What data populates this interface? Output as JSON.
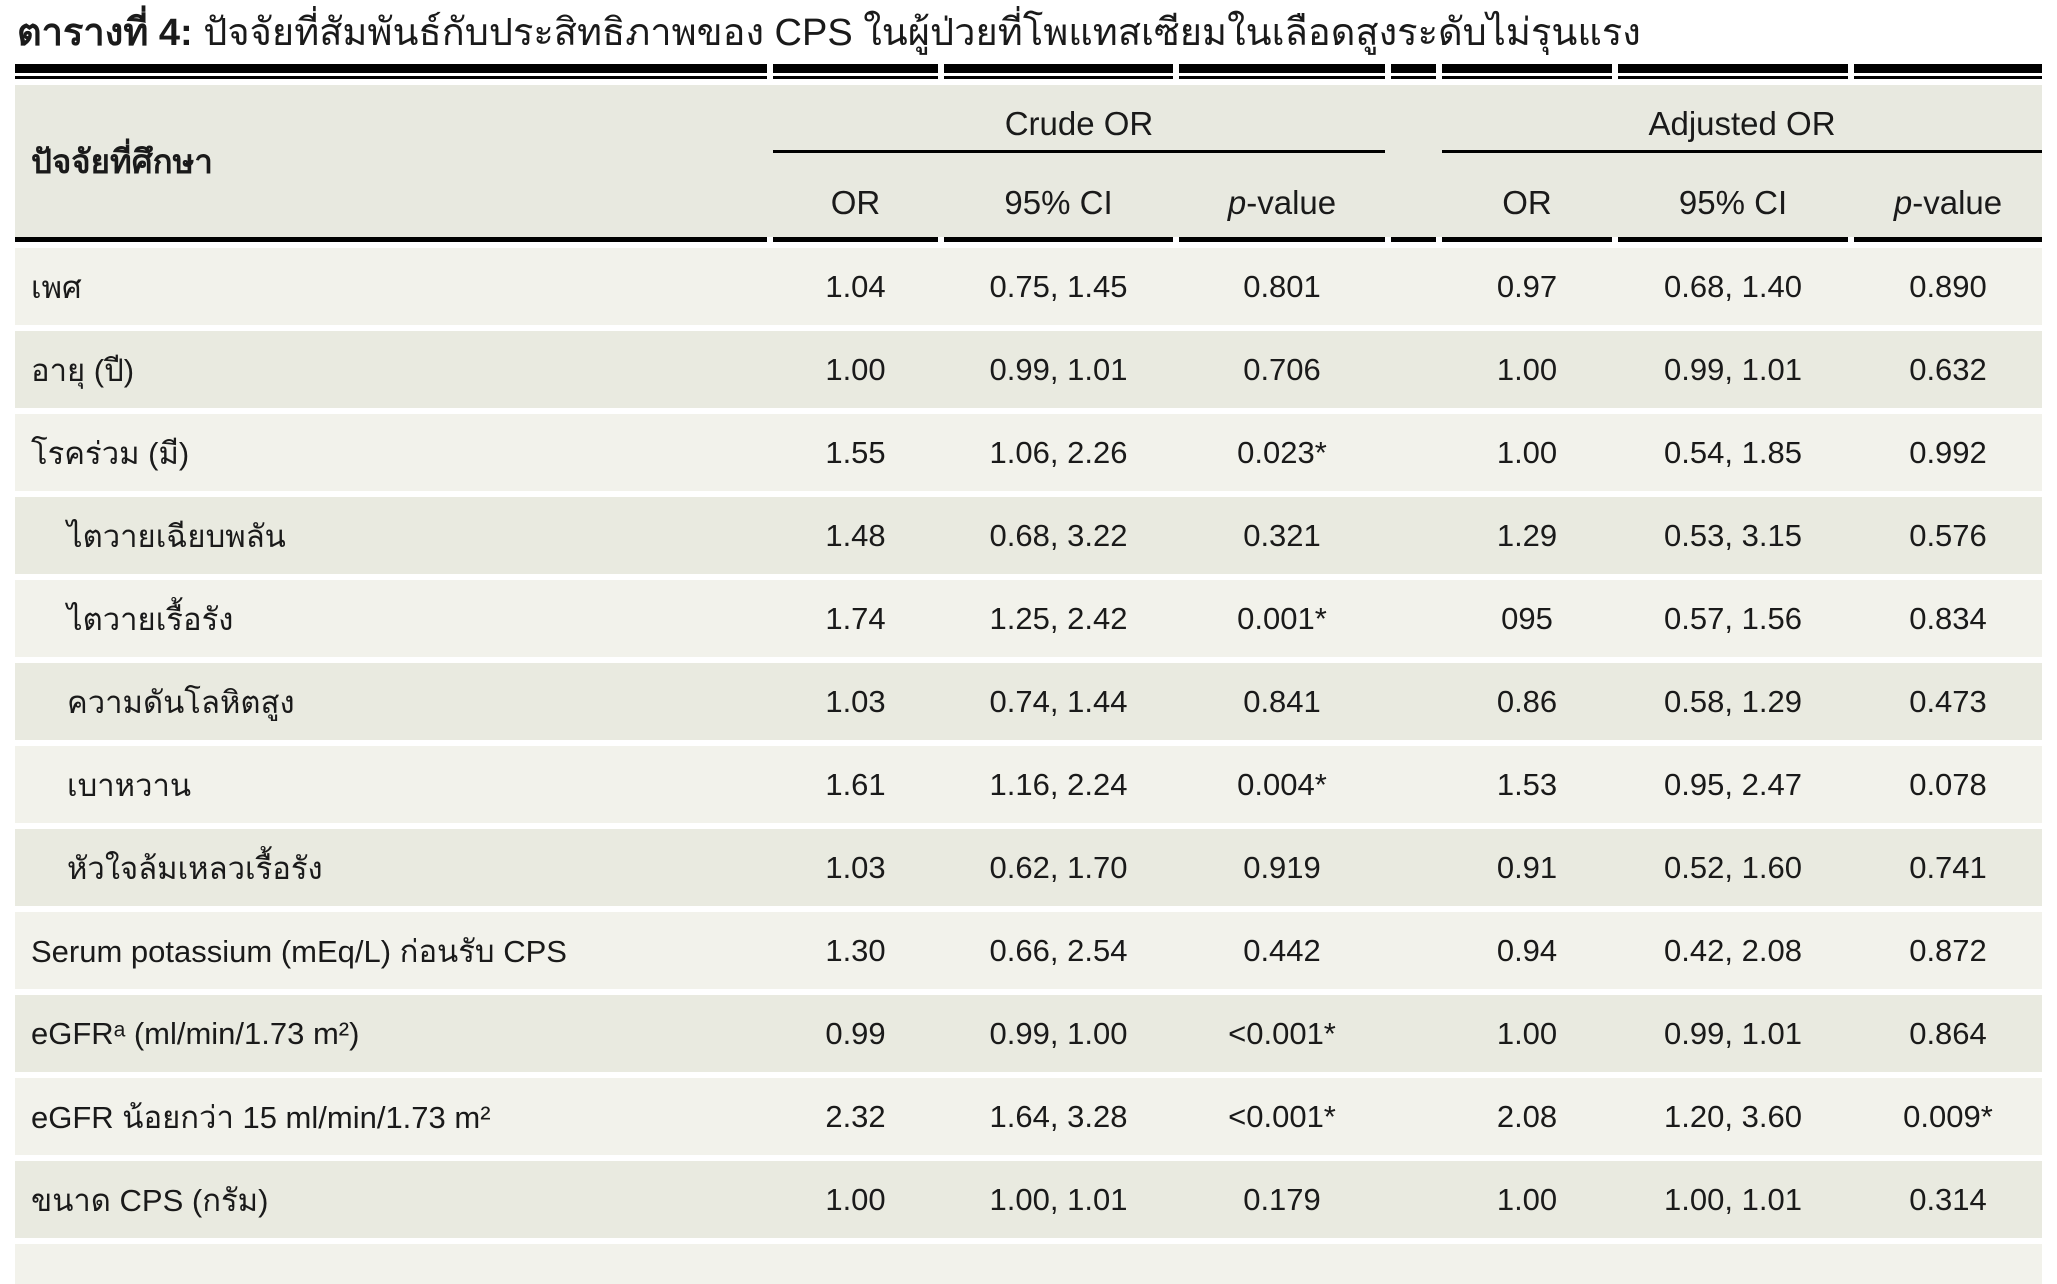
{
  "title": {
    "prefix": "ตารางที่ 4:",
    "text": " ปัจจัยที่สัมพันธ์กับประสิทธิภาพของ CPS ในผู้ป่วยที่โพแทสเซียมในเลือดสูงระดับไม่รุนแรง"
  },
  "table": {
    "factor_header": "ปัจจัยที่ศึกษา",
    "groups": {
      "crude": "Crude OR",
      "adjusted": "Adjusted OR"
    },
    "subheaders": {
      "or": "OR",
      "ci": "95% CI",
      "p_italic": "p",
      "p_suffix": "-value"
    },
    "colors": {
      "page_bg": "#ffffff",
      "header_bg": "#e8e9e0",
      "row_odd_bg": "#f2f2eb",
      "row_even_bg": "#e9eae0",
      "rule": "#000000",
      "text": "#1a1a1a"
    },
    "rows": [
      {
        "label": "เพศ",
        "indent": false,
        "crude": {
          "or": "1.04",
          "ci": "0.75, 1.45",
          "p": "0.801"
        },
        "adjusted": {
          "or": "0.97",
          "ci": "0.68, 1.40",
          "p": "0.890"
        }
      },
      {
        "label": "อายุ (ปี)",
        "indent": false,
        "crude": {
          "or": "1.00",
          "ci": "0.99, 1.01",
          "p": "0.706"
        },
        "adjusted": {
          "or": "1.00",
          "ci": "0.99, 1.01",
          "p": "0.632"
        }
      },
      {
        "label": "โรคร่วม (มี)",
        "indent": false,
        "crude": {
          "or": "1.55",
          "ci": "1.06, 2.26",
          "p": "0.023*"
        },
        "adjusted": {
          "or": "1.00",
          "ci": "0.54, 1.85",
          "p": "0.992"
        }
      },
      {
        "label": "ไตวายเฉียบพลัน",
        "indent": true,
        "crude": {
          "or": "1.48",
          "ci": "0.68, 3.22",
          "p": "0.321"
        },
        "adjusted": {
          "or": "1.29",
          "ci": "0.53, 3.15",
          "p": "0.576"
        }
      },
      {
        "label": "ไตวายเรื้อรัง",
        "indent": true,
        "crude": {
          "or": "1.74",
          "ci": "1.25, 2.42",
          "p": "0.001*"
        },
        "adjusted": {
          "or": "095",
          "ci": "0.57, 1.56",
          "p": "0.834"
        }
      },
      {
        "label": "ความดันโลหิตสูง",
        "indent": true,
        "crude": {
          "or": "1.03",
          "ci": "0.74, 1.44",
          "p": "0.841"
        },
        "adjusted": {
          "or": "0.86",
          "ci": "0.58, 1.29",
          "p": "0.473"
        }
      },
      {
        "label": "เบาหวาน",
        "indent": true,
        "crude": {
          "or": "1.61",
          "ci": "1.16, 2.24",
          "p": "0.004*"
        },
        "adjusted": {
          "or": "1.53",
          "ci": "0.95, 2.47",
          "p": "0.078"
        }
      },
      {
        "label": "หัวใจล้มเหลวเรื้อรัง",
        "indent": true,
        "crude": {
          "or": "1.03",
          "ci": "0.62, 1.70",
          "p": "0.919"
        },
        "adjusted": {
          "or": "0.91",
          "ci": "0.52, 1.60",
          "p": "0.741"
        }
      },
      {
        "label": "Serum potassium (mEq/L) ก่อนรับ CPS",
        "indent": false,
        "crude": {
          "or": "1.30",
          "ci": "0.66, 2.54",
          "p": "0.442"
        },
        "adjusted": {
          "or": "0.94",
          "ci": "0.42, 2.08",
          "p": "0.872"
        }
      },
      {
        "label": "eGFRᵃ (ml/min/1.73 m²)",
        "indent": false,
        "crude": {
          "or": "0.99",
          "ci": "0.99, 1.00",
          "p": "<0.001*"
        },
        "adjusted": {
          "or": "1.00",
          "ci": "0.99, 1.01",
          "p": "0.864"
        }
      },
      {
        "label": "eGFR น้อยกว่า 15 ml/min/1.73 m²",
        "indent": false,
        "crude": {
          "or": "2.32",
          "ci": "1.64, 3.28",
          "p": "<0.001*"
        },
        "adjusted": {
          "or": "2.08",
          "ci": "1.20, 3.60",
          "p": "0.009*"
        }
      },
      {
        "label": "ขนาด CPS (กรัม)",
        "indent": false,
        "crude": {
          "or": "1.00",
          "ci": "1.00, 1.01",
          "p": "0.179"
        },
        "adjusted": {
          "or": "1.00",
          "ci": "1.00, 1.01",
          "p": "0.314"
        }
      }
    ]
  }
}
